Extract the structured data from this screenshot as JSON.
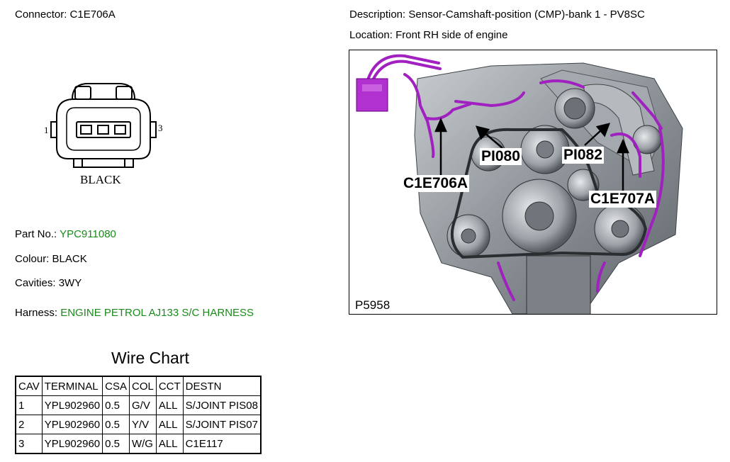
{
  "connector": {
    "label": "Connector:",
    "value": "C1E706A"
  },
  "description": {
    "label": "Description:",
    "value": "Sensor-Camshaft-position (CMP)-bank 1 - PV8SC"
  },
  "location": {
    "label": "Location:",
    "value": "Front RH side of engine"
  },
  "connector_drawing": {
    "pin_left": "1",
    "pin_right": "3",
    "color_label": "BLACK"
  },
  "part": {
    "label": "Part No.:",
    "value": "YPC911080"
  },
  "colour": {
    "label": "Colour:",
    "value": "BLACK"
  },
  "cavities": {
    "label": "Cavities:",
    "value": "3WY"
  },
  "harness": {
    "label": "Harness:",
    "value": "ENGINE PETROL AJ133 S/C HARNESS"
  },
  "image": {
    "id": "P5958",
    "callouts": {
      "c1": "C1E706A",
      "p1": "PI080",
      "p2": "PI082",
      "c2": "C1E707A"
    }
  },
  "wire_chart": {
    "title": "Wire Chart",
    "headers": [
      "CAV",
      "TERMINAL",
      "CSA",
      "COL",
      "CCT",
      "DESTN"
    ],
    "rows": [
      [
        "1",
        "YPL902960",
        "0.5",
        "G/V",
        "ALL",
        "S/JOINT PIS08"
      ],
      [
        "2",
        "YPL902960",
        "0.5",
        "Y/V",
        "ALL",
        "S/JOINT PIS07"
      ],
      [
        "3",
        "YPL902960",
        "0.5",
        "W/G",
        "ALL",
        "C1E117"
      ]
    ]
  },
  "colors": {
    "link_green": "#1a8a1a",
    "harness_purple": "#a020c0"
  }
}
